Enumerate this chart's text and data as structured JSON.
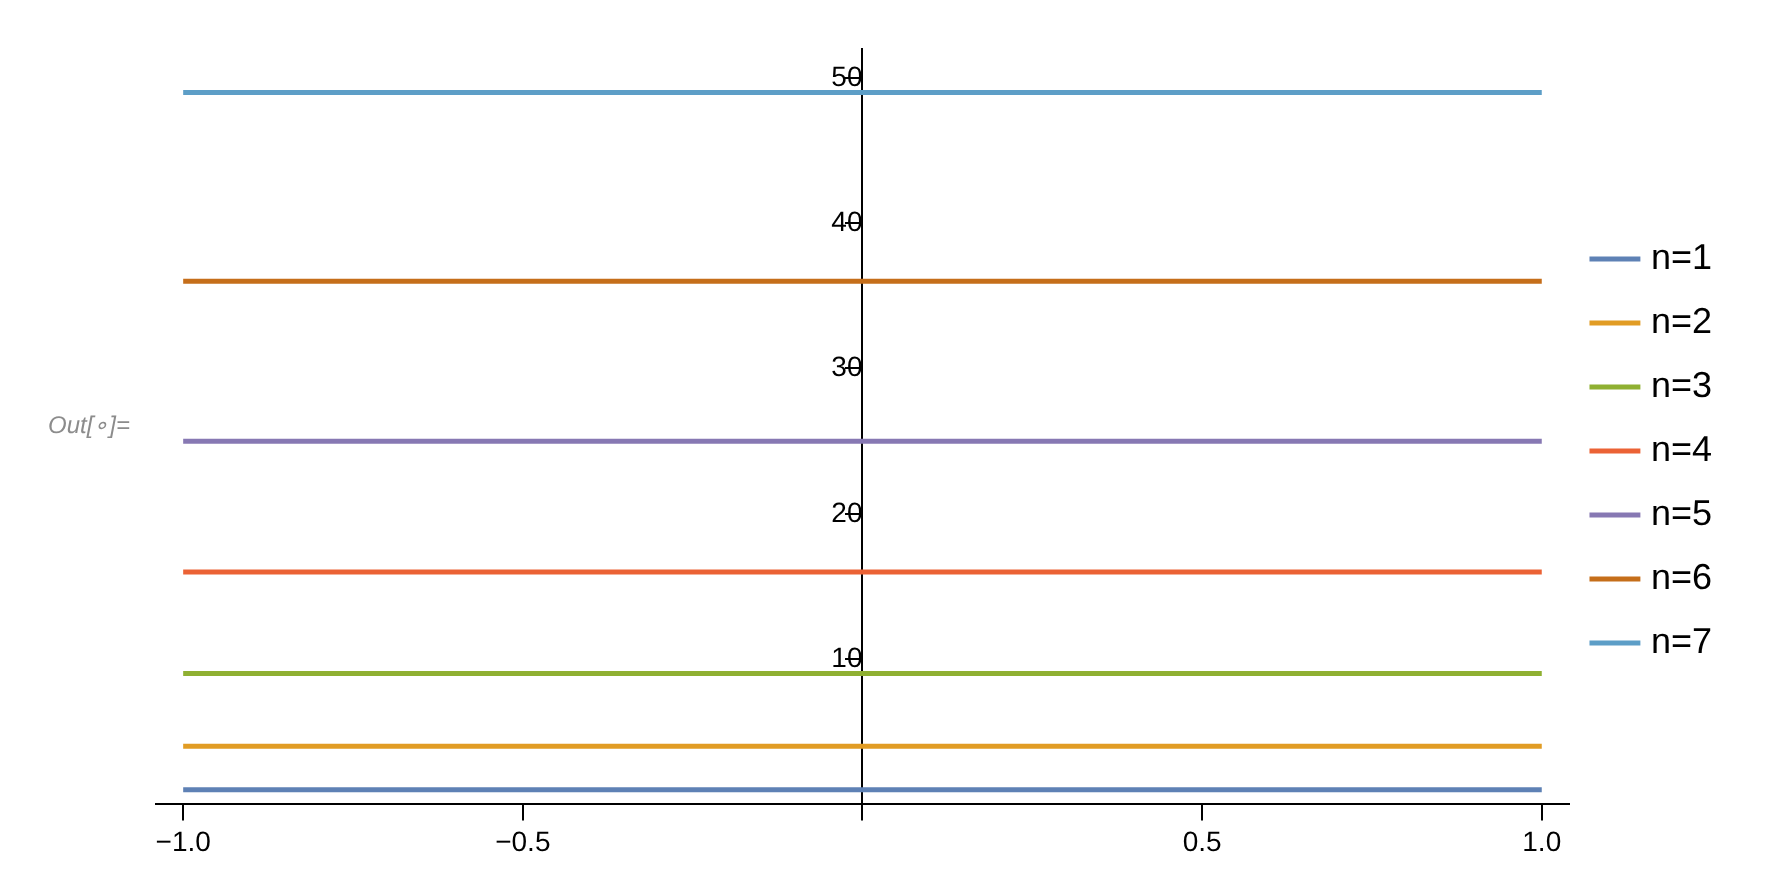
{
  "chart_data": {
    "type": "line",
    "x": [
      -1,
      1
    ],
    "series": [
      {
        "name": "n=1",
        "color": "#5e81b5",
        "values": [
          1,
          1
        ]
      },
      {
        "name": "n=2",
        "color": "#e19c24",
        "values": [
          4,
          4
        ]
      },
      {
        "name": "n=3",
        "color": "#8fb032",
        "values": [
          9,
          9
        ]
      },
      {
        "name": "n=4",
        "color": "#eb6235",
        "values": [
          16,
          16
        ]
      },
      {
        "name": "n=5",
        "color": "#8778b3",
        "values": [
          25,
          25
        ]
      },
      {
        "name": "n=6",
        "color": "#c56e1a",
        "values": [
          36,
          36
        ]
      },
      {
        "name": "n=7",
        "color": "#5d9ec7",
        "values": [
          49,
          49
        ]
      }
    ],
    "xlim": [
      -1.04,
      1.04
    ],
    "xticks": [
      {
        "value": -1,
        "label": "−1.0"
      },
      {
        "value": -0.5,
        "label": "−0.5"
      },
      {
        "value": 0,
        "label": null
      },
      {
        "value": 0.5,
        "label": "0.5"
      },
      {
        "value": 1,
        "label": "1.0"
      }
    ],
    "ylim": [
      0,
      52
    ],
    "yticks": [
      10,
      20,
      30,
      40,
      50
    ],
    "annotations": [
      "Out[∘]="
    ],
    "grid": false,
    "legend": "right",
    "marker": "none",
    "line_style": "solid"
  }
}
